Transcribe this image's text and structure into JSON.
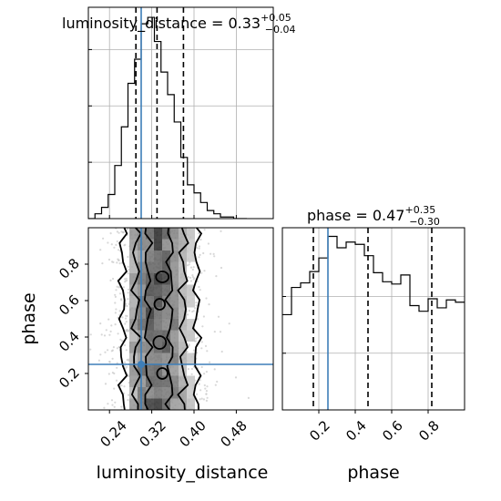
{
  "chart_data": {
    "type": "corner",
    "parameters": [
      "luminosity_distance",
      "phase"
    ],
    "truth": {
      "luminosity_distance": 0.3,
      "phase": 0.25
    },
    "colors": {
      "truth": "#3d7eb8",
      "contour": "#000000",
      "samples": "#c8c8c8",
      "grid": "#b0b0b0"
    },
    "grid": true,
    "panels": [
      {
        "id": "hist-luminosity_distance",
        "type": "histogram",
        "param": "luminosity_distance",
        "title_main": "luminosity_distance = 0.33",
        "title_sup": "+0.05",
        "title_sub": "−0.04",
        "quantiles": [
          0.29,
          0.33,
          0.38
        ],
        "xlim": [
          0.2,
          0.55
        ],
        "bin_edges": [
          0.2,
          0.2125,
          0.225,
          0.2375,
          0.25,
          0.2625,
          0.275,
          0.2875,
          0.3,
          0.3125,
          0.325,
          0.3375,
          0.35,
          0.3625,
          0.375,
          0.3875,
          0.4,
          0.4125,
          0.425,
          0.4375,
          0.45,
          0.4625,
          0.475,
          0.4875,
          0.5
        ],
        "counts": [
          0,
          3,
          7,
          15,
          33,
          57,
          84,
          99,
          121,
          125,
          110,
          91,
          77,
          60,
          38,
          21,
          16,
          10,
          5,
          3,
          1,
          1,
          0,
          0
        ]
      },
      {
        "id": "hist-phase",
        "type": "histogram",
        "param": "phase",
        "title_main": "phase = 0.47",
        "title_sup": "+0.35",
        "title_sub": "−0.30",
        "quantiles": [
          0.17,
          0.47,
          0.82
        ],
        "xlim": [
          0.0,
          1.0
        ],
        "bin_edges": [
          0.0,
          0.05,
          0.1,
          0.15,
          0.2,
          0.25,
          0.3,
          0.35,
          0.4,
          0.45,
          0.5,
          0.55,
          0.6,
          0.65,
          0.7,
          0.75,
          0.8,
          0.85,
          0.9,
          0.95,
          1.0
        ],
        "counts": [
          84,
          108,
          112,
          122,
          134,
          153,
          143,
          148,
          146,
          136,
          121,
          113,
          111,
          119,
          92,
          87,
          98,
          90,
          97,
          95
        ]
      },
      {
        "id": "2d-luminosity_distance-phase",
        "type": "contour",
        "x_param": "luminosity_distance",
        "y_param": "phase",
        "xlim": [
          0.2,
          0.55
        ],
        "ylim": [
          0.0,
          1.0
        ]
      }
    ],
    "x_ticks_luminosity_distance": [
      "0.24",
      "0.32",
      "0.40",
      "0.48"
    ],
    "y_ticks_phase": [
      "0.2",
      "0.4",
      "0.6",
      "0.8"
    ],
    "x_ticks_phase": [
      "0.2",
      "0.4",
      "0.6",
      "0.8"
    ],
    "xlabel_left": "luminosity_distance",
    "xlabel_right": "phase",
    "ylabel": "phase"
  }
}
